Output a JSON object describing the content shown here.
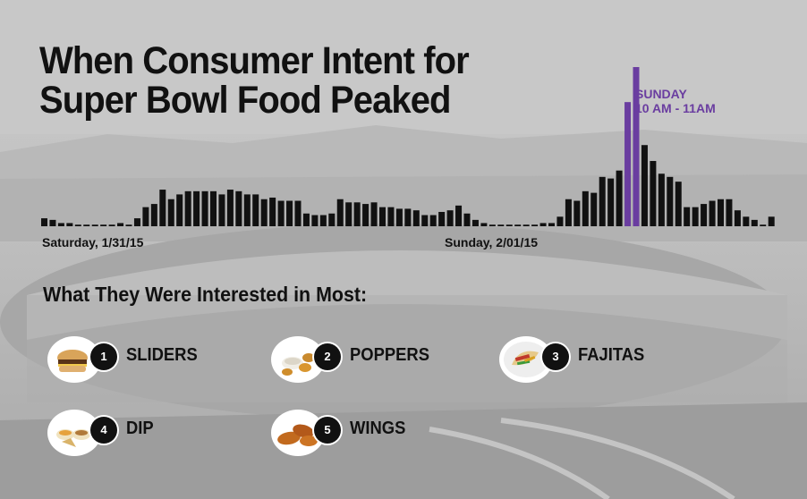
{
  "title_line1": "When Consumer Intent for",
  "title_line2": "Super Bowl Food Peaked",
  "subtitle": "What They Were Interested in Most:",
  "colors": {
    "bar": "#111111",
    "peak": "#6a3da0",
    "text": "#111111"
  },
  "chart_data": {
    "type": "bar",
    "title": "When Consumer Intent for Super Bowl Food Peaked",
    "xlabel": "",
    "ylabel": "",
    "ylim": [
      0,
      100
    ],
    "grid": false,
    "x_tick_labels": [
      "Saturday, 1/31/15",
      "Sunday, 2/01/15"
    ],
    "annotation": {
      "line1": "SUNDAY",
      "line2": "10 AM - 11AM"
    },
    "values": [
      5,
      4,
      2,
      2,
      1,
      1,
      1,
      1,
      1,
      2,
      1,
      5,
      12,
      14,
      23,
      17,
      20,
      22,
      22,
      22,
      22,
      20,
      23,
      22,
      20,
      20,
      17,
      18,
      16,
      16,
      16,
      8,
      7,
      7,
      8,
      17,
      15,
      15,
      14,
      15,
      12,
      12,
      11,
      11,
      10,
      7,
      7,
      9,
      10,
      13,
      8,
      4,
      2,
      1,
      1,
      1,
      1,
      1,
      1,
      2,
      2,
      6,
      17,
      16,
      22,
      21,
      31,
      30,
      35,
      78,
      100,
      51,
      41,
      33,
      31,
      28,
      12,
      12,
      14,
      16,
      17,
      17,
      10,
      6,
      4,
      1,
      6
    ],
    "peak_indices": [
      69,
      70
    ]
  },
  "foods": [
    {
      "rank": "1",
      "name": "SLIDERS",
      "icon": "slider-icon"
    },
    {
      "rank": "2",
      "name": "POPPERS",
      "icon": "popper-icon"
    },
    {
      "rank": "3",
      "name": "FAJITAS",
      "icon": "fajita-icon"
    },
    {
      "rank": "4",
      "name": "DIP",
      "icon": "dip-icon"
    },
    {
      "rank": "5",
      "name": "WINGS",
      "icon": "wing-icon"
    }
  ]
}
